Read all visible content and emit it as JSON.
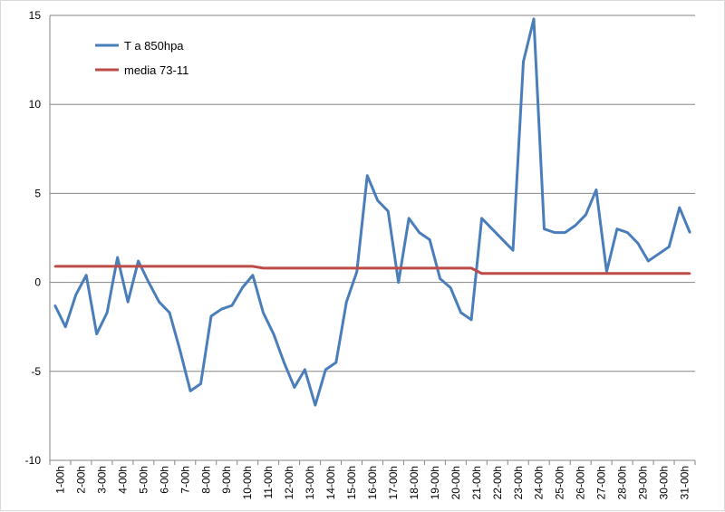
{
  "chart_data": {
    "type": "line",
    "x_tick_labels": [
      "1-00h",
      "2-00h",
      "3-00h",
      "4-00h",
      "5-00h",
      "6-00h",
      "7-00h",
      "8-00h",
      "9-00h",
      "10-00h",
      "11-00h",
      "12-00h",
      "13-00h",
      "14-00h",
      "15-00h",
      "16-00h",
      "17-00h",
      "18-00h",
      "19-00h",
      "20-00h",
      "21-00h",
      "22-00h",
      "23-00h",
      "24-00h",
      "25-00h",
      "26-00h",
      "27-00h",
      "28-00h",
      "29-00h",
      "30-00h",
      "31-00h"
    ],
    "ylim": [
      -10,
      15
    ],
    "y_ticks": [
      -10,
      -5,
      0,
      5,
      10,
      15
    ],
    "grid": "horizontal",
    "legend_position": "top-left",
    "series": [
      {
        "name": "T a 850hpa",
        "color": "#4a7ebb",
        "values": [
          -1.3,
          -2.5,
          -0.7,
          0.4,
          -2.9,
          -1.7,
          1.4,
          -1.1,
          1.2,
          0.0,
          -1.1,
          -1.7,
          -3.8,
          -6.1,
          -5.7,
          -1.9,
          -1.5,
          -1.3,
          -0.3,
          0.4,
          -1.7,
          -2.9,
          -4.5,
          -5.9,
          -4.9,
          -6.9,
          -4.9,
          -4.5,
          -1.1,
          0.6,
          6.0,
          4.6,
          4.0,
          0.0,
          3.6,
          2.8,
          2.4,
          0.2,
          -0.3,
          -1.7,
          -2.1,
          3.6,
          3.0,
          2.4,
          1.8,
          12.4,
          14.8,
          3.0,
          2.8,
          2.8,
          3.2,
          3.8,
          5.2,
          0.6,
          3.0,
          2.8,
          2.2,
          1.2,
          1.6,
          2.0,
          4.2,
          2.8
        ]
      },
      {
        "name": "media 73-11",
        "color": "#be4b48",
        "values": [
          0.9,
          0.9,
          0.9,
          0.9,
          0.9,
          0.9,
          0.9,
          0.9,
          0.9,
          0.9,
          0.9,
          0.9,
          0.9,
          0.9,
          0.9,
          0.9,
          0.9,
          0.9,
          0.9,
          0.9,
          0.8,
          0.8,
          0.8,
          0.8,
          0.8,
          0.8,
          0.8,
          0.8,
          0.8,
          0.8,
          0.8,
          0.8,
          0.8,
          0.8,
          0.8,
          0.8,
          0.8,
          0.8,
          0.8,
          0.8,
          0.8,
          0.5,
          0.5,
          0.5,
          0.5,
          0.5,
          0.5,
          0.5,
          0.5,
          0.5,
          0.5,
          0.5,
          0.5,
          0.5,
          0.5,
          0.5,
          0.5,
          0.5,
          0.5,
          0.5,
          0.5,
          0.5
        ]
      }
    ]
  }
}
